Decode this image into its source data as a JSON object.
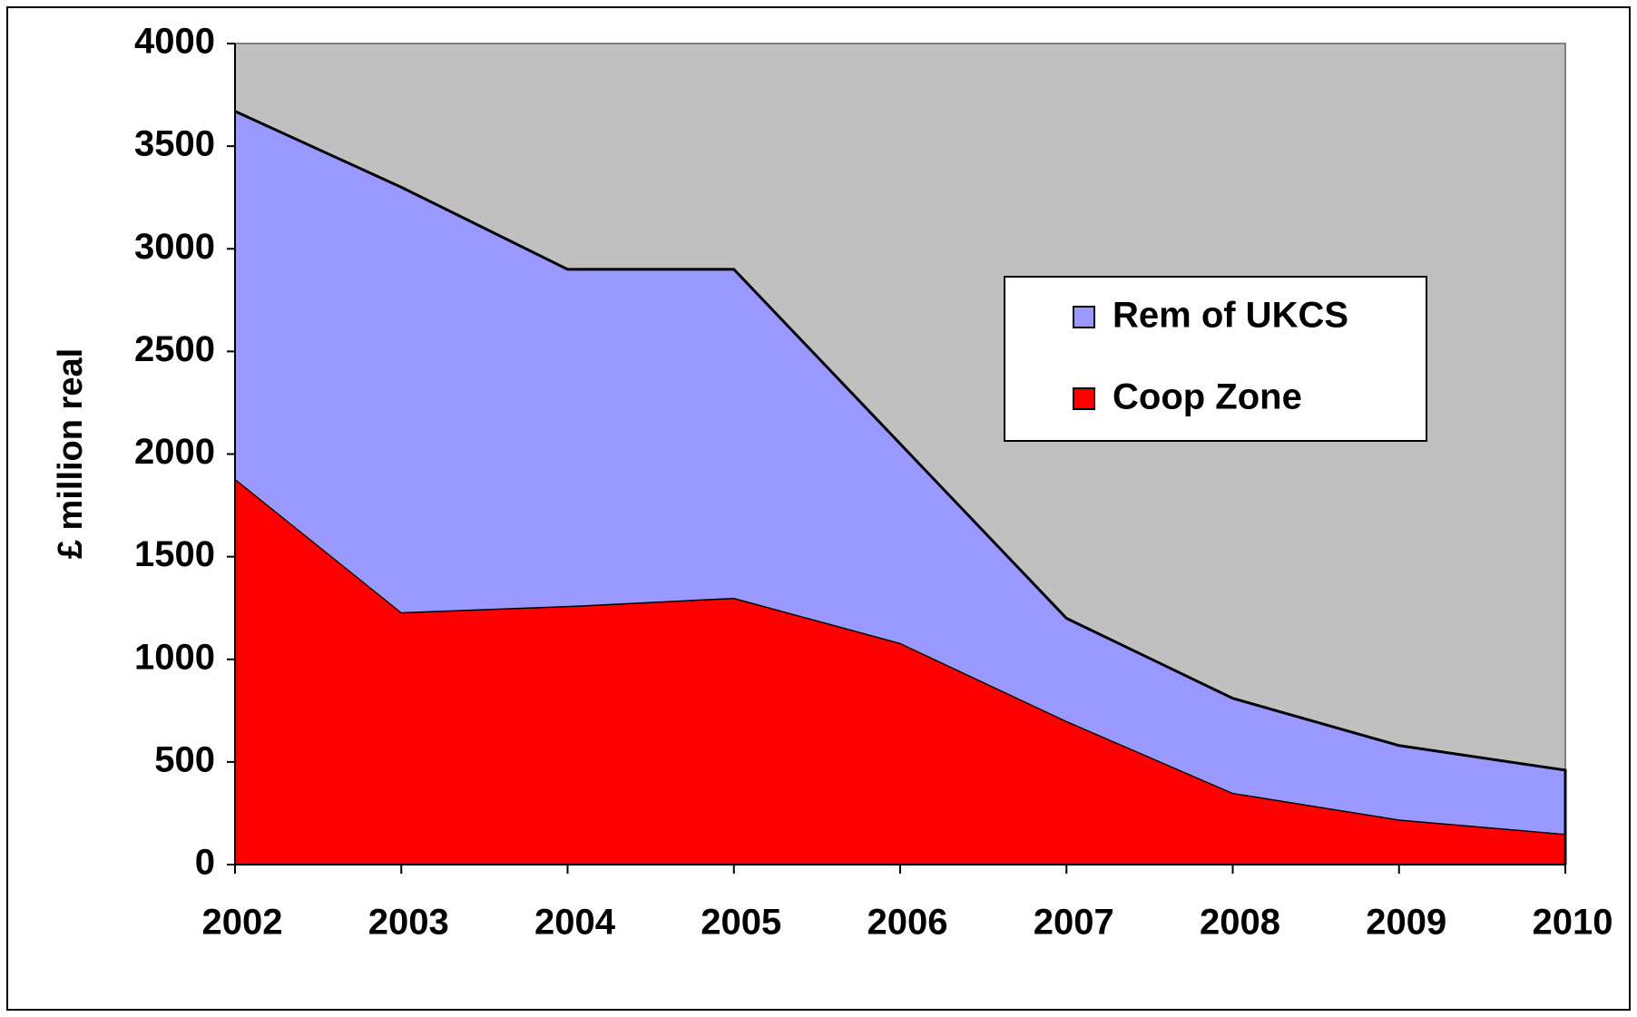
{
  "chart_data": {
    "type": "stacked_area",
    "y_label": "£ million real",
    "categories": [
      "2002",
      "2003",
      "2004",
      "2005",
      "2006",
      "2007",
      "2008",
      "2009",
      "2010"
    ],
    "series": [
      {
        "name": "Coop Zone",
        "color": "#ff0000",
        "values": [
          1880,
          1230,
          1260,
          1300,
          1080,
          700,
          350,
          220,
          150
        ]
      },
      {
        "name": "Rem of UKCS",
        "color": "#9999ff",
        "values": [
          1790,
          2070,
          1640,
          1600,
          970,
          500,
          460,
          360,
          310
        ]
      }
    ],
    "ylim": [
      0,
      4000
    ],
    "yticks": [
      0,
      500,
      1000,
      1500,
      2000,
      2500,
      3000,
      3500,
      4000
    ],
    "plot_background": "#c0c0c0",
    "legend": "right"
  }
}
